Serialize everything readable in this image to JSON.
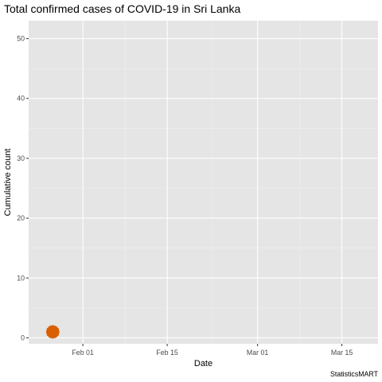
{
  "chart_data": {
    "type": "scatter",
    "title": "Total confirmed cases of COVID-19 in Sri Lanka",
    "xlabel": "Date",
    "ylabel": "Cumulative count",
    "caption": "StatisticsMART",
    "x_type": "date",
    "xlim": [
      "2020-01-23",
      "2020-03-21"
    ],
    "ylim": [
      -1,
      53
    ],
    "x_ticks": [
      {
        "date": "2020-02-01",
        "label": "Feb 01"
      },
      {
        "date": "2020-02-15",
        "label": "Feb 15"
      },
      {
        "date": "2020-03-01",
        "label": "Mar 01"
      },
      {
        "date": "2020-03-15",
        "label": "Mar 15"
      }
    ],
    "y_ticks": [
      0,
      10,
      20,
      30,
      40,
      50
    ],
    "grid": true,
    "legend": "none",
    "series": [
      {
        "points": [
          {
            "x": "2020-01-27",
            "y": 1
          }
        ],
        "color": "#d95f02"
      }
    ],
    "colors": {
      "panel_bg": "#e5e5e5",
      "grid_major": "#ffffff",
      "grid_minor": "#f2f2f2",
      "point": "#d95f02",
      "tick": "#333333"
    }
  }
}
